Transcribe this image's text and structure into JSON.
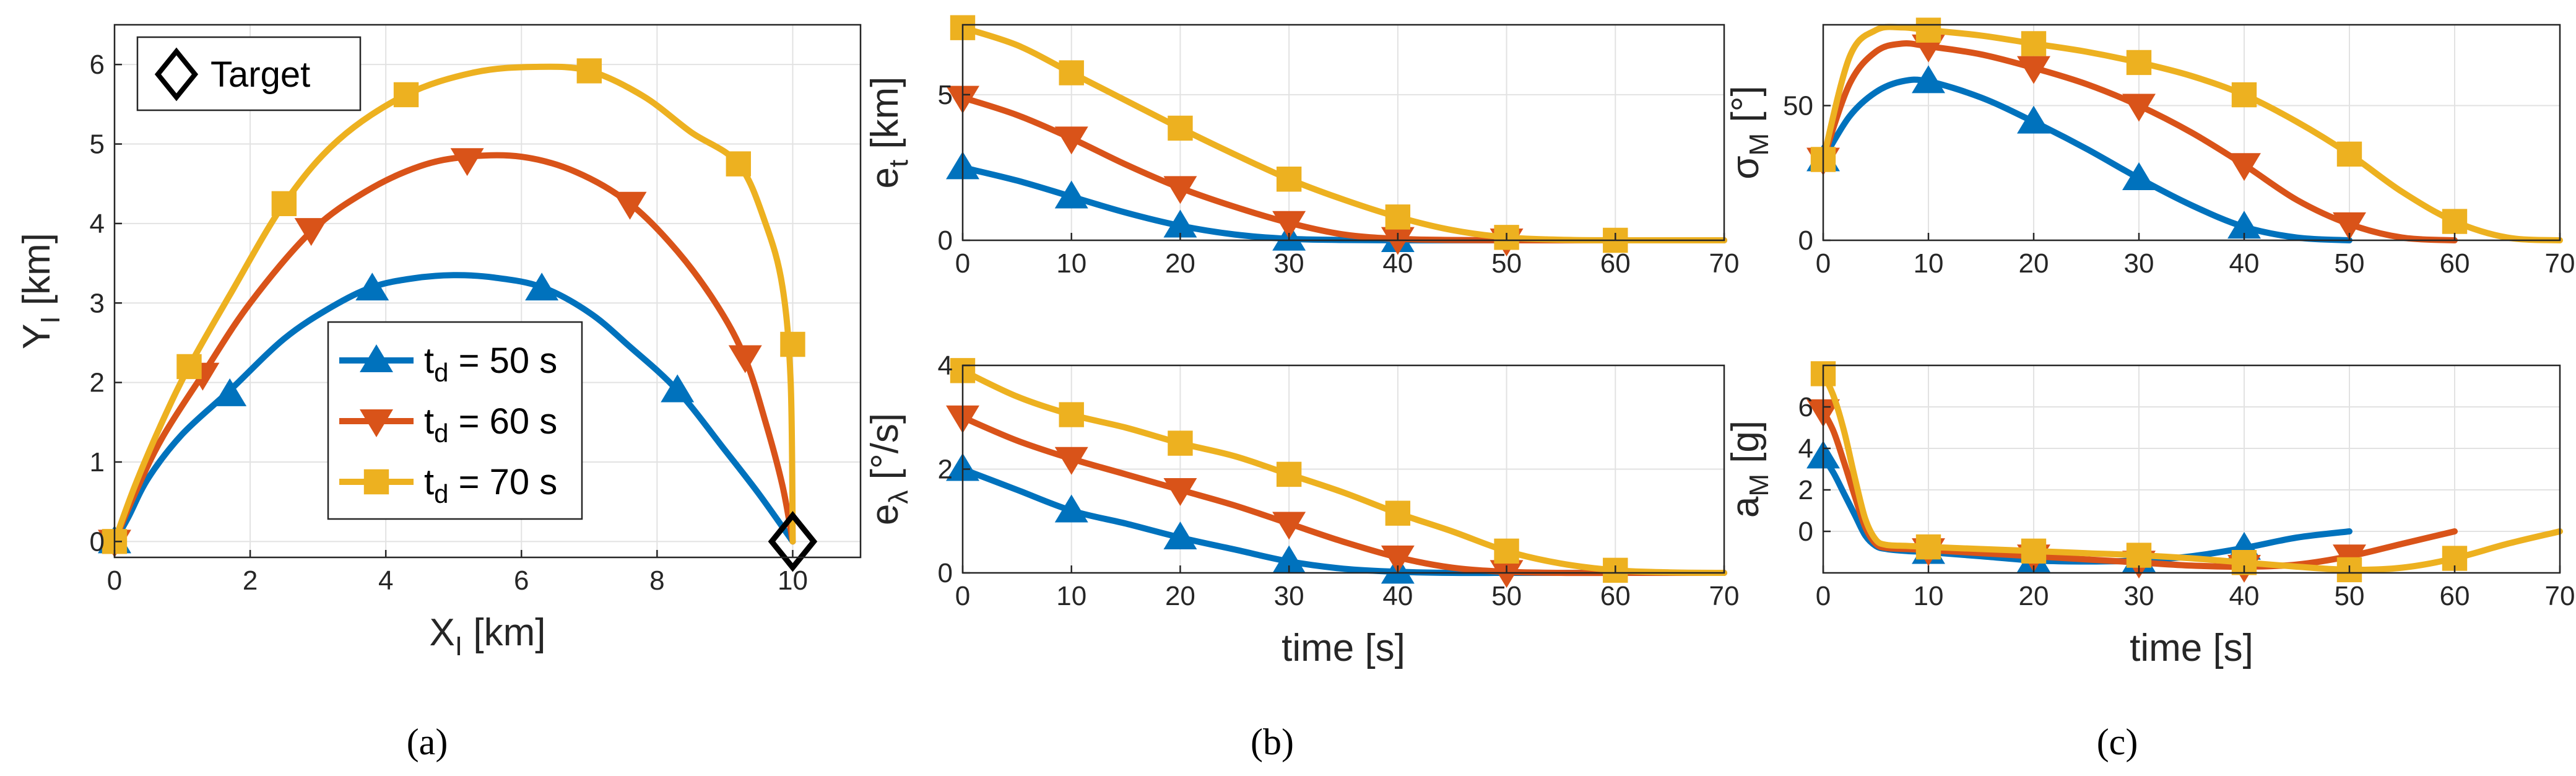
{
  "colors": {
    "blue": "#0072BD",
    "red": "#D95319",
    "yellow": "#EDB120"
  },
  "captions": [
    "(a)",
    "(b)",
    "(c)"
  ],
  "legend": {
    "target": "Target",
    "entries": [
      {
        "base": "t",
        "sub": "d",
        "text": " = 50 s"
      },
      {
        "base": "t",
        "sub": "d",
        "text": " = 60 s"
      },
      {
        "base": "t",
        "sub": "d",
        "text": " = 70 s"
      }
    ]
  },
  "chart_data": [
    {
      "id": "a",
      "type": "line",
      "xlabel": {
        "base": "X",
        "sub": "I",
        "unit": " [km]"
      },
      "ylabel": {
        "base": "Y",
        "sub": "I",
        "unit": " [km]"
      },
      "xlim": [
        0,
        11
      ],
      "ylim": [
        -0.2,
        6.5
      ],
      "xticks": [
        0,
        2,
        4,
        6,
        8,
        10
      ],
      "yticks": [
        0,
        1,
        2,
        3,
        4,
        5,
        6
      ],
      "target": [
        10,
        0
      ],
      "series": [
        {
          "name": "td = 50 s",
          "color": "blue",
          "marker": "triangle-up",
          "x": [
            0,
            0.2,
            0.5,
            1.0,
            1.7,
            2.5,
            3.2,
            3.8,
            4.4,
            5.0,
            5.6,
            6.3,
            7.0,
            7.6,
            8.3,
            9.0,
            9.5,
            10.0
          ],
          "y": [
            0,
            0.3,
            0.8,
            1.35,
            1.9,
            2.55,
            2.95,
            3.2,
            3.31,
            3.35,
            3.32,
            3.2,
            2.88,
            2.45,
            1.9,
            1.15,
            0.6,
            0
          ],
          "mx": [
            0,
            1.7,
            3.8,
            6.3,
            8.3
          ],
          "my": [
            0,
            1.85,
            3.18,
            3.18,
            1.9
          ]
        },
        {
          "name": "td = 60 s",
          "color": "red",
          "marker": "triangle-down",
          "x": [
            0,
            0.3,
            0.7,
            1.3,
            2.0,
            2.9,
            3.7,
            4.5,
            5.2,
            6.0,
            6.8,
            7.6,
            8.3,
            8.9,
            9.3,
            9.6,
            9.85,
            10.0
          ],
          "y": [
            0,
            0.6,
            1.3,
            2.1,
            3.0,
            3.9,
            4.4,
            4.72,
            4.84,
            4.84,
            4.65,
            4.25,
            3.65,
            2.95,
            2.3,
            1.5,
            0.7,
            0
          ],
          "mx": [
            0,
            1.3,
            2.9,
            5.2,
            7.6,
            9.3
          ],
          "my": [
            0,
            2.1,
            3.92,
            4.8,
            4.25,
            2.32
          ]
        },
        {
          "name": "td = 70 s",
          "color": "yellow",
          "marker": "square",
          "x": [
            0,
            0.3,
            0.7,
            1.1,
            1.7,
            2.5,
            3.3,
            4.3,
            5.3,
            6.2,
            7.0,
            7.8,
            8.5,
            9.2,
            9.6,
            9.85,
            9.97,
            10.0
          ],
          "y": [
            0,
            0.7,
            1.5,
            2.2,
            3.1,
            4.25,
            5.05,
            5.62,
            5.9,
            5.97,
            5.92,
            5.6,
            5.15,
            4.75,
            4.0,
            3.2,
            2.0,
            0
          ],
          "mx": [
            0,
            1.1,
            2.5,
            4.3,
            7.0,
            9.2,
            10.0
          ],
          "my": [
            0,
            2.2,
            4.25,
            5.62,
            5.92,
            4.75,
            2.48
          ]
        }
      ]
    },
    {
      "id": "b1",
      "type": "line",
      "xlabel": null,
      "ylabel": {
        "base": "e",
        "sub": "t",
        "unit": " [km]"
      },
      "xlim": [
        0,
        70
      ],
      "ylim": [
        0,
        7.4
      ],
      "xticks": [
        0,
        10,
        20,
        30,
        40,
        50,
        60,
        70
      ],
      "yticks": [
        0,
        5
      ],
      "x": [
        0,
        5,
        10,
        15,
        20,
        25,
        30,
        35,
        40,
        45,
        50,
        55,
        60,
        65,
        70
      ],
      "series": [
        {
          "name": "td = 50 s",
          "color": "blue",
          "marker": "triangle-up",
          "y": [
            2.5,
            2.05,
            1.5,
            0.95,
            0.5,
            0.2,
            0.05,
            0.01,
            0,
            0,
            0,
            0,
            0,
            0,
            0
          ],
          "mx": [
            0,
            10,
            20,
            30,
            40
          ]
        },
        {
          "name": "td = 60 s",
          "color": "red",
          "marker": "triangle-down",
          "y": [
            4.9,
            4.3,
            3.5,
            2.6,
            1.8,
            1.15,
            0.6,
            0.2,
            0.05,
            0.01,
            0,
            0,
            0,
            0,
            0
          ],
          "mx": [
            0,
            10,
            20,
            30,
            40,
            50
          ]
        },
        {
          "name": "td = 70 s",
          "color": "yellow",
          "marker": "square",
          "y": [
            7.3,
            6.7,
            5.75,
            4.8,
            3.85,
            2.95,
            2.1,
            1.4,
            0.8,
            0.35,
            0.1,
            0.02,
            0,
            0,
            0
          ],
          "mx": [
            0,
            10,
            20,
            30,
            40,
            50,
            60
          ]
        }
      ]
    },
    {
      "id": "b2",
      "type": "line",
      "xlabel": "time [s]",
      "ylabel": {
        "base": "e",
        "sub": "λ",
        "unit": " [°/s]"
      },
      "xlim": [
        0,
        70
      ],
      "ylim": [
        0,
        4
      ],
      "xticks": [
        0,
        10,
        20,
        30,
        40,
        50,
        60,
        70
      ],
      "yticks": [
        0,
        2,
        4
      ],
      "x": [
        0,
        5,
        10,
        15,
        20,
        25,
        30,
        35,
        40,
        45,
        50,
        55,
        60,
        65,
        70
      ],
      "series": [
        {
          "name": "td = 50 s",
          "color": "blue",
          "marker": "triangle-up",
          "y": [
            2.0,
            1.6,
            1.2,
            0.95,
            0.68,
            0.45,
            0.22,
            0.08,
            0.02,
            0,
            0,
            0,
            0,
            0,
            0
          ],
          "mx": [
            0,
            10,
            20,
            30,
            40
          ]
        },
        {
          "name": "td = 60 s",
          "color": "red",
          "marker": "triangle-down",
          "y": [
            3.0,
            2.55,
            2.2,
            1.9,
            1.6,
            1.3,
            0.95,
            0.6,
            0.3,
            0.1,
            0.02,
            0,
            0,
            0,
            0
          ],
          "mx": [
            0,
            10,
            20,
            30,
            40,
            50
          ]
        },
        {
          "name": "td = 70 s",
          "color": "yellow",
          "marker": "square",
          "y": [
            3.9,
            3.4,
            3.05,
            2.8,
            2.5,
            2.25,
            1.9,
            1.55,
            1.15,
            0.8,
            0.42,
            0.18,
            0.05,
            0.01,
            0
          ],
          "mx": [
            0,
            10,
            20,
            30,
            40,
            50,
            60
          ]
        }
      ]
    },
    {
      "id": "c1",
      "type": "line",
      "xlabel": null,
      "ylabel": {
        "base": "σ",
        "sub": "M",
        "unit": " [°]"
      },
      "xlim": [
        0,
        70
      ],
      "ylim": [
        0,
        80
      ],
      "xticks": [
        0,
        10,
        20,
        30,
        40,
        50,
        60,
        70
      ],
      "yticks": [
        0,
        50
      ],
      "x": [
        0,
        2.5,
        5,
        7.5,
        10,
        15,
        20,
        25,
        30,
        35,
        40,
        45,
        50,
        55,
        60,
        65,
        70
      ],
      "series": [
        {
          "name": "td = 50 s",
          "color": "blue",
          "marker": "triangle-up",
          "end": 50,
          "y": [
            30,
            46,
            55,
            59,
            59,
            53,
            44,
            34,
            23,
            13,
            5,
            1,
            0,
            null,
            null,
            null,
            null
          ],
          "mx": [
            0,
            10,
            20,
            30,
            40
          ]
        },
        {
          "name": "td = 60 s",
          "color": "red",
          "marker": "triangle-down",
          "end": 60,
          "y": [
            30,
            58,
            70,
            73,
            72,
            69,
            64,
            58,
            50,
            40,
            28,
            15,
            6,
            1,
            0,
            null,
            null
          ],
          "mx": [
            0,
            10,
            20,
            30,
            40,
            50
          ]
        },
        {
          "name": "td = 70 s",
          "color": "yellow",
          "marker": "square",
          "end": 70,
          "y": [
            30,
            68,
            78,
            79,
            78,
            76,
            73,
            70,
            66,
            61,
            54,
            44,
            32,
            18,
            7,
            1,
            0
          ],
          "mx": [
            0,
            10,
            20,
            30,
            40,
            50,
            60
          ]
        }
      ]
    },
    {
      "id": "c2",
      "type": "line",
      "xlabel": "time [s]",
      "ylabel": {
        "base": "a",
        "sub": "M",
        "unit": " [g]"
      },
      "xlim": [
        0,
        70
      ],
      "ylim": [
        -2,
        8
      ],
      "xticks": [
        0,
        10,
        20,
        30,
        40,
        50,
        60,
        70
      ],
      "yticks": [
        0,
        2,
        4,
        6
      ],
      "x": [
        0,
        1,
        2,
        3,
        4,
        5,
        6,
        8,
        10,
        15,
        20,
        25,
        30,
        35,
        40,
        45,
        50,
        55,
        60,
        65,
        70
      ],
      "series": [
        {
          "name": "td = 50 s",
          "color": "blue",
          "marker": "triangle-up",
          "end": 50,
          "y": [
            3.6,
            2.8,
            1.8,
            0.8,
            -0.2,
            -0.7,
            -0.85,
            -0.95,
            -1.0,
            -1.2,
            -1.4,
            -1.45,
            -1.4,
            -1.2,
            -0.8,
            -0.3,
            0,
            null,
            null,
            null,
            null
          ],
          "mx": [
            0,
            10,
            20,
            30,
            40
          ]
        },
        {
          "name": "td = 60 s",
          "color": "red",
          "marker": "triangle-down",
          "end": 60,
          "y": [
            5.8,
            4.8,
            3.3,
            1.7,
            0.2,
            -0.6,
            -0.8,
            -0.85,
            -0.9,
            -1.05,
            -1.2,
            -1.35,
            -1.5,
            -1.65,
            -1.7,
            -1.6,
            -1.2,
            -0.6,
            0,
            null,
            null
          ],
          "mx": [
            0,
            10,
            20,
            30,
            40,
            50
          ]
        },
        {
          "name": "td = 70 s",
          "color": "yellow",
          "marker": "square",
          "end": 70,
          "y": [
            7.6,
            6.5,
            4.8,
            2.6,
            0.6,
            -0.4,
            -0.65,
            -0.7,
            -0.75,
            -0.85,
            -0.95,
            -1.05,
            -1.15,
            -1.3,
            -1.5,
            -1.7,
            -1.85,
            -1.75,
            -1.3,
            -0.6,
            0
          ],
          "mx": [
            0,
            10,
            20,
            30,
            40,
            50,
            60
          ]
        }
      ]
    }
  ]
}
